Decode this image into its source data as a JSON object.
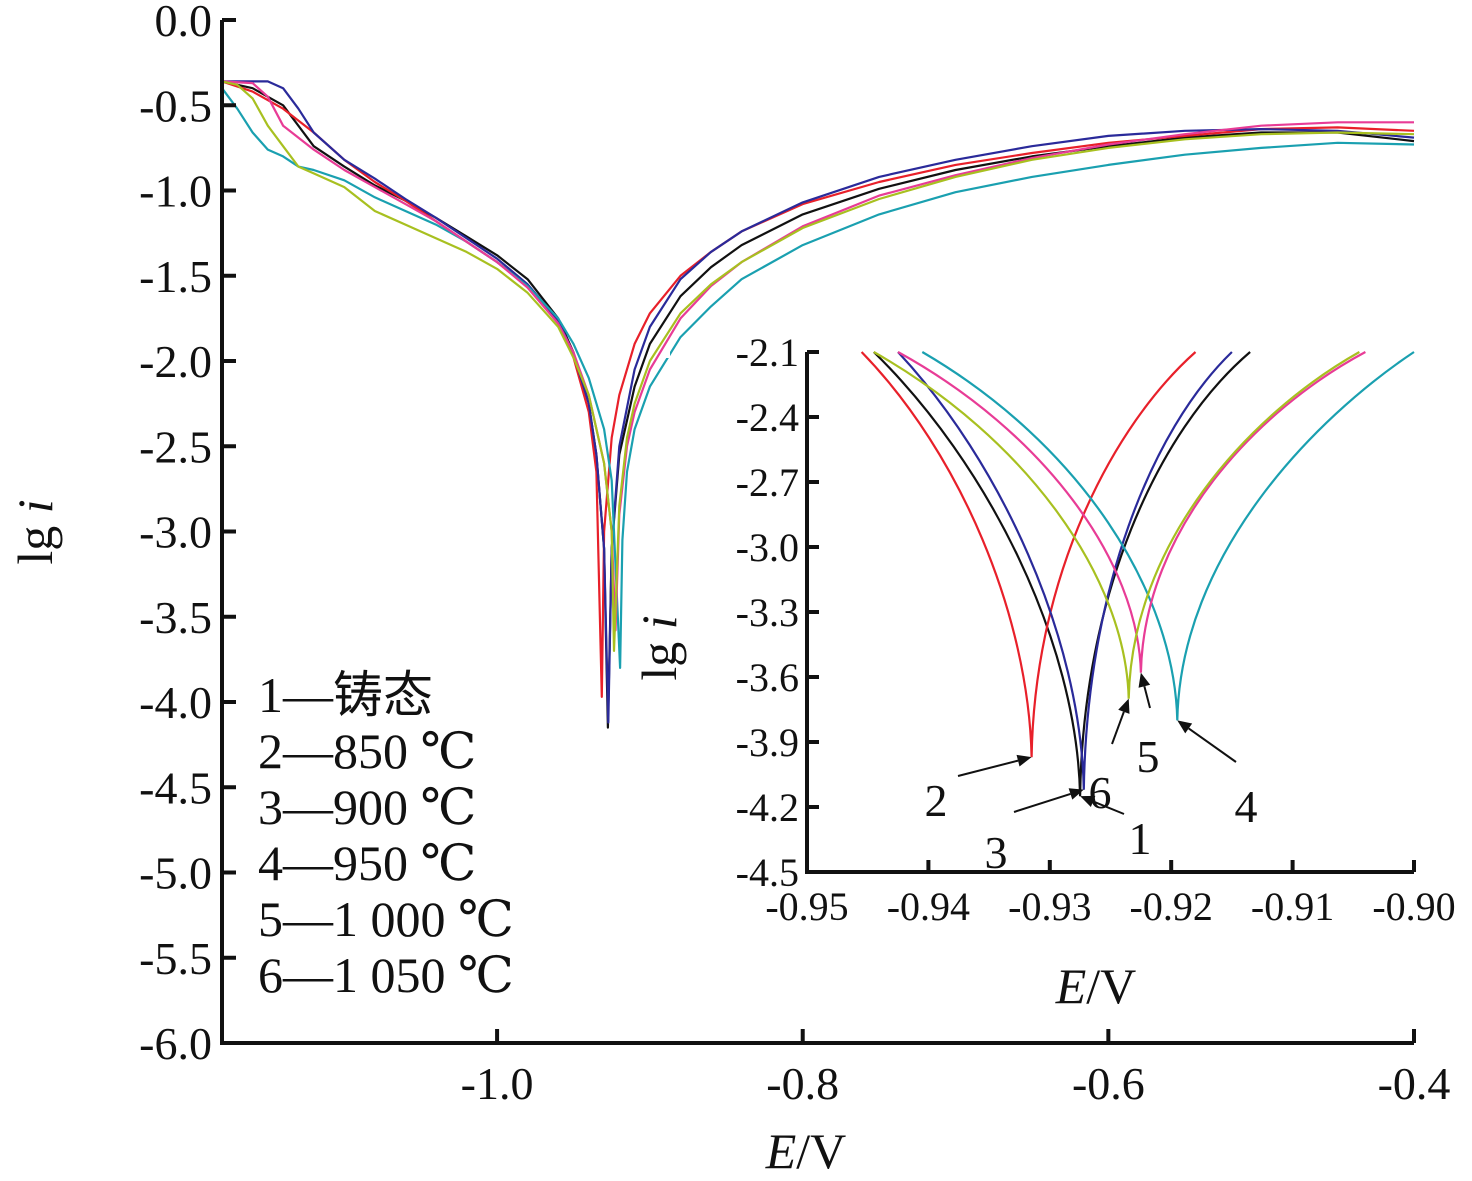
{
  "chart_data": [
    {
      "type": "line",
      "xlabel_italic": "E",
      "xlabel_unit": "/V",
      "ylabel_main": "lg ",
      "ylabel_italic": "i",
      "xlim": [
        -1.18,
        -0.4
      ],
      "ylim": [
        -6.0,
        0.0
      ],
      "xticks": [
        -1.0,
        -0.8,
        -0.6,
        -0.4
      ],
      "xtick_labels": [
        "-1.0",
        "-0.8",
        "-0.6",
        "-0.4"
      ],
      "yticks": [
        0.0,
        -0.5,
        -1.0,
        -1.5,
        -2.0,
        -2.5,
        -3.0,
        -3.5,
        -4.0,
        -4.5,
        -5.0,
        -5.5,
        -6.0
      ],
      "ytick_labels": [
        "0.0",
        "-0.5",
        "-1.0",
        "-1.5",
        "-2.0",
        "-2.5",
        "-3.0",
        "-3.5",
        "-4.0",
        "-4.5",
        "-5.0",
        "-5.5",
        "-6.0"
      ],
      "legend_placement": "bottom-left",
      "series": [
        {
          "name": "1—铸态",
          "color": "#111111",
          "ecorr": -0.9275,
          "min": -4.15,
          "x": [
            -1.18,
            -1.16,
            -1.14,
            -1.12,
            -1.1,
            -1.08,
            -1.06,
            -1.04,
            -1.02,
            -1.0,
            -0.98,
            -0.96,
            -0.95,
            -0.94,
            -0.935,
            -0.93,
            -0.9275,
            -0.925,
            -0.92,
            -0.91,
            -0.9,
            -0.88,
            -0.86,
            -0.84,
            -0.8,
            -0.75,
            -0.7,
            -0.65,
            -0.6,
            -0.55,
            -0.5,
            -0.45,
            -0.4
          ],
          "y": [
            -0.36,
            -0.4,
            -0.5,
            -0.74,
            -0.86,
            -0.97,
            -1.06,
            -1.16,
            -1.27,
            -1.38,
            -1.52,
            -1.75,
            -1.95,
            -2.25,
            -2.55,
            -3.1,
            -4.15,
            -3.1,
            -2.55,
            -2.15,
            -1.9,
            -1.62,
            -1.45,
            -1.32,
            -1.14,
            -0.99,
            -0.88,
            -0.8,
            -0.74,
            -0.69,
            -0.66,
            -0.66,
            -0.71
          ]
        },
        {
          "name": "2—850 ℃",
          "color": "#e8202a",
          "ecorr": -0.9315,
          "min": -3.97,
          "x": [
            -1.18,
            -1.16,
            -1.14,
            -1.12,
            -1.1,
            -1.08,
            -1.06,
            -1.04,
            -1.02,
            -1.0,
            -0.98,
            -0.96,
            -0.95,
            -0.94,
            -0.935,
            -0.9315,
            -0.93,
            -0.925,
            -0.92,
            -0.91,
            -0.9,
            -0.88,
            -0.86,
            -0.84,
            -0.8,
            -0.75,
            -0.7,
            -0.65,
            -0.6,
            -0.55,
            -0.5,
            -0.45,
            -0.4
          ],
          "y": [
            -0.36,
            -0.42,
            -0.52,
            -0.66,
            -0.82,
            -0.95,
            -1.06,
            -1.18,
            -1.3,
            -1.42,
            -1.56,
            -1.78,
            -1.98,
            -2.3,
            -2.65,
            -3.97,
            -3.0,
            -2.45,
            -2.2,
            -1.9,
            -1.72,
            -1.5,
            -1.36,
            -1.24,
            -1.08,
            -0.95,
            -0.85,
            -0.78,
            -0.72,
            -0.68,
            -0.64,
            -0.63,
            -0.65
          ]
        },
        {
          "name": "3—900 ℃",
          "color": "#2a2a9a",
          "ecorr": -0.9272,
          "min": -4.12,
          "x": [
            -1.18,
            -1.15,
            -1.14,
            -1.13,
            -1.12,
            -1.1,
            -1.08,
            -1.06,
            -1.04,
            -1.02,
            -1.0,
            -0.98,
            -0.96,
            -0.95,
            -0.94,
            -0.935,
            -0.93,
            -0.9272,
            -0.925,
            -0.92,
            -0.91,
            -0.9,
            -0.88,
            -0.86,
            -0.84,
            -0.8,
            -0.75,
            -0.7,
            -0.65,
            -0.6,
            -0.55,
            -0.5,
            -0.45,
            -0.4
          ],
          "y": [
            -0.36,
            -0.36,
            -0.4,
            -0.52,
            -0.66,
            -0.82,
            -0.93,
            -1.05,
            -1.16,
            -1.28,
            -1.4,
            -1.55,
            -1.76,
            -1.96,
            -2.25,
            -2.55,
            -3.1,
            -4.12,
            -3.1,
            -2.5,
            -2.05,
            -1.8,
            -1.52,
            -1.36,
            -1.24,
            -1.07,
            -0.92,
            -0.82,
            -0.74,
            -0.68,
            -0.65,
            -0.64,
            -0.65,
            -0.69
          ]
        },
        {
          "name": "4—950 ℃",
          "color": "#1aa0b0",
          "ecorr": -0.9195,
          "min": -3.8,
          "x": [
            -1.18,
            -1.17,
            -1.16,
            -1.15,
            -1.14,
            -1.13,
            -1.12,
            -1.1,
            -1.08,
            -1.06,
            -1.04,
            -1.02,
            -1.0,
            -0.98,
            -0.96,
            -0.95,
            -0.94,
            -0.93,
            -0.925,
            -0.9195,
            -0.918,
            -0.915,
            -0.91,
            -0.9,
            -0.88,
            -0.86,
            -0.84,
            -0.8,
            -0.75,
            -0.7,
            -0.65,
            -0.6,
            -0.55,
            -0.5,
            -0.45,
            -0.4
          ],
          "y": [
            -0.4,
            -0.52,
            -0.66,
            -0.76,
            -0.8,
            -0.86,
            -0.88,
            -0.94,
            -1.04,
            -1.12,
            -1.2,
            -1.3,
            -1.42,
            -1.56,
            -1.75,
            -1.9,
            -2.1,
            -2.4,
            -2.7,
            -3.8,
            -3.05,
            -2.65,
            -2.4,
            -2.15,
            -1.86,
            -1.68,
            -1.52,
            -1.32,
            -1.14,
            -1.01,
            -0.92,
            -0.85,
            -0.79,
            -0.75,
            -0.72,
            -0.73
          ]
        },
        {
          "name": "5—1 000 ℃",
          "color": "#e83c96",
          "ecorr": -0.9225,
          "min": -3.58,
          "x": [
            -1.18,
            -1.16,
            -1.15,
            -1.14,
            -1.12,
            -1.1,
            -1.08,
            -1.06,
            -1.04,
            -1.02,
            -1.0,
            -0.98,
            -0.96,
            -0.95,
            -0.94,
            -0.93,
            -0.925,
            -0.9225,
            -0.92,
            -0.915,
            -0.91,
            -0.9,
            -0.88,
            -0.86,
            -0.84,
            -0.8,
            -0.75,
            -0.7,
            -0.65,
            -0.6,
            -0.55,
            -0.5,
            -0.45,
            -0.4
          ],
          "y": [
            -0.36,
            -0.37,
            -0.45,
            -0.62,
            -0.76,
            -0.88,
            -0.98,
            -1.08,
            -1.18,
            -1.3,
            -1.42,
            -1.57,
            -1.78,
            -1.95,
            -2.2,
            -2.6,
            -3.0,
            -3.58,
            -2.9,
            -2.5,
            -2.3,
            -2.05,
            -1.75,
            -1.56,
            -1.42,
            -1.21,
            -1.03,
            -0.91,
            -0.81,
            -0.73,
            -0.67,
            -0.62,
            -0.6,
            -0.6
          ]
        },
        {
          "name": "6—1 050 ℃",
          "color": "#a8c020",
          "ecorr": -0.9235,
          "min": -3.7,
          "x": [
            -1.18,
            -1.17,
            -1.16,
            -1.15,
            -1.14,
            -1.13,
            -1.12,
            -1.1,
            -1.08,
            -1.06,
            -1.04,
            -1.02,
            -1.0,
            -0.98,
            -0.96,
            -0.95,
            -0.94,
            -0.93,
            -0.925,
            -0.9235,
            -0.92,
            -0.915,
            -0.91,
            -0.9,
            -0.88,
            -0.86,
            -0.84,
            -0.8,
            -0.75,
            -0.7,
            -0.65,
            -0.6,
            -0.55,
            -0.5,
            -0.45,
            -0.4
          ],
          "y": [
            -0.36,
            -0.38,
            -0.46,
            -0.62,
            -0.74,
            -0.86,
            -0.9,
            -0.98,
            -1.12,
            -1.2,
            -1.28,
            -1.36,
            -1.46,
            -1.6,
            -1.8,
            -1.98,
            -2.2,
            -2.6,
            -3.0,
            -3.7,
            -2.85,
            -2.45,
            -2.25,
            -2.0,
            -1.72,
            -1.55,
            -1.42,
            -1.22,
            -1.05,
            -0.92,
            -0.82,
            -0.75,
            -0.7,
            -0.67,
            -0.66,
            -0.67
          ]
        }
      ]
    },
    {
      "type": "line",
      "xlabel_italic": "E",
      "xlabel_unit": "/V",
      "ylabel_main": "lg ",
      "ylabel_italic": "i",
      "xlim": [
        -0.95,
        -0.9
      ],
      "ylim": [
        -4.5,
        -2.1
      ],
      "xticks": [
        -0.95,
        -0.94,
        -0.93,
        -0.92,
        -0.91,
        -0.9
      ],
      "xtick_labels": [
        "-0.95",
        "-0.94",
        "-0.93",
        "-0.92",
        "-0.91",
        "-0.90"
      ],
      "yticks": [
        -2.1,
        -2.4,
        -2.7,
        -3.0,
        -3.3,
        -3.6,
        -3.9,
        -4.2,
        -4.5
      ],
      "ytick_labels": [
        "-2.1",
        "-2.4",
        "-2.7",
        "-3.0",
        "-3.3",
        "-3.6",
        "-3.9",
        "-4.2",
        "-4.5"
      ],
      "callouts": [
        {
          "label": "1",
          "series": 1
        },
        {
          "label": "2",
          "series": 2
        },
        {
          "label": "3",
          "series": 3
        },
        {
          "label": "4",
          "series": 4
        },
        {
          "label": "5",
          "series": 5
        },
        {
          "label": "6",
          "series": 6
        }
      ],
      "series": [
        {
          "name": "1",
          "color": "#111111",
          "ecorr": -0.9275,
          "min": -4.15,
          "left": -0.9445,
          "right": -0.9135,
          "ctr": 0.55,
          "ctl": 0.55
        },
        {
          "name": "2",
          "color": "#e8202a",
          "ecorr": -0.9315,
          "min": -3.97,
          "left": -0.9455,
          "right": -0.918,
          "ctr": 0.5,
          "ctl": 0.58
        },
        {
          "name": "3",
          "color": "#2a2a9a",
          "ecorr": -0.9272,
          "min": -4.12,
          "left": -0.9425,
          "right": -0.915,
          "ctr": 0.55,
          "ctl": 0.55
        },
        {
          "name": "4",
          "color": "#1aa0b0",
          "ecorr": -0.9195,
          "min": -3.8,
          "left": -0.9405,
          "right": -0.9,
          "ctr": 0.42,
          "ctl": 0.62
        },
        {
          "name": "5",
          "color": "#e83c96",
          "ecorr": -0.9225,
          "min": -3.58,
          "left": -0.9425,
          "right": -0.904,
          "ctr": 0.48,
          "ctl": 0.6
        },
        {
          "name": "6",
          "color": "#a8c020",
          "ecorr": -0.9235,
          "min": -3.7,
          "left": -0.9445,
          "right": -0.9045,
          "ctr": 0.48,
          "ctl": 0.6
        }
      ]
    }
  ]
}
